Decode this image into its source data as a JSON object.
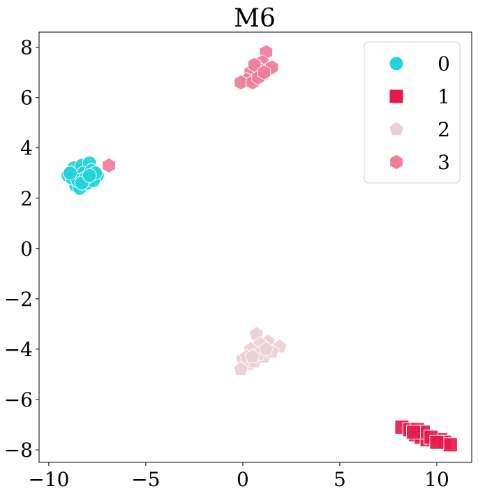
{
  "chart_data": {
    "type": "scatter",
    "title": "M6",
    "xlabel": "",
    "ylabel": "",
    "xlim": [
      -10.5,
      11.8
    ],
    "ylim": [
      -8.5,
      8.6
    ],
    "xticks": [
      -10,
      -5,
      0,
      5,
      10
    ],
    "yticks": [
      -8,
      -6,
      -4,
      -2,
      0,
      2,
      4,
      6,
      8
    ],
    "xtick_labels": [
      "−10",
      "−5",
      "0",
      "5",
      "10"
    ],
    "ytick_labels": [
      "−8",
      "−6",
      "−4",
      "−2",
      "0",
      "2",
      "4",
      "6",
      "8"
    ],
    "grid": false,
    "legend_position": "top-right",
    "series": [
      {
        "name": "0",
        "marker": "circle",
        "color": "#22d3d9",
        "points": [
          [
            -9.0,
            2.9
          ],
          [
            -8.7,
            3.2
          ],
          [
            -8.3,
            3.3
          ],
          [
            -7.9,
            3.4
          ],
          [
            -8.6,
            2.5
          ],
          [
            -8.4,
            2.4
          ],
          [
            -8.0,
            2.6
          ],
          [
            -7.5,
            2.9
          ],
          [
            -7.7,
            2.7
          ],
          [
            -8.8,
            2.8
          ],
          [
            -8.2,
            3.0
          ],
          [
            -7.8,
            3.1
          ],
          [
            -8.5,
            2.7
          ],
          [
            -8.1,
            2.8
          ],
          [
            -7.6,
            3.0
          ],
          [
            -8.9,
            3.0
          ],
          [
            -8.3,
            2.6
          ],
          [
            -7.9,
            2.9
          ]
        ]
      },
      {
        "name": "1",
        "marker": "square",
        "color": "#e8194a",
        "points": [
          [
            8.2,
            -7.1
          ],
          [
            8.6,
            -7.2
          ],
          [
            8.9,
            -7.4
          ],
          [
            9.2,
            -7.5
          ],
          [
            9.0,
            -7.2
          ],
          [
            9.5,
            -7.6
          ],
          [
            9.8,
            -7.6
          ],
          [
            10.2,
            -7.6
          ],
          [
            10.4,
            -7.7
          ],
          [
            10.7,
            -7.8
          ],
          [
            9.3,
            -7.3
          ],
          [
            8.8,
            -7.3
          ],
          [
            9.7,
            -7.5
          ],
          [
            10.0,
            -7.7
          ]
        ]
      },
      {
        "name": "2",
        "marker": "pentagon",
        "color": "#ebcfd4",
        "points": [
          [
            0.7,
            -3.4
          ],
          [
            1.3,
            -3.7
          ],
          [
            1.9,
            -3.9
          ],
          [
            0.9,
            -3.8
          ],
          [
            0.4,
            -4.0
          ],
          [
            0.0,
            -4.4
          ],
          [
            0.3,
            -4.6
          ],
          [
            0.6,
            -4.5
          ],
          [
            1.1,
            -4.3
          ],
          [
            1.5,
            -4.1
          ],
          [
            -0.1,
            -4.8
          ],
          [
            0.2,
            -4.3
          ],
          [
            0.8,
            -4.2
          ],
          [
            1.2,
            -4.0
          ],
          [
            0.5,
            -4.3
          ]
        ]
      },
      {
        "name": "3",
        "marker": "hexagon",
        "color": "#ef7d98",
        "points": [
          [
            1.2,
            7.8
          ],
          [
            1.0,
            7.4
          ],
          [
            0.7,
            7.2
          ],
          [
            0.4,
            7.0
          ],
          [
            0.9,
            7.1
          ],
          [
            1.3,
            7.1
          ],
          [
            1.5,
            7.2
          ],
          [
            0.2,
            6.7
          ],
          [
            -0.1,
            6.6
          ],
          [
            0.5,
            6.6
          ],
          [
            1.0,
            6.9
          ],
          [
            0.8,
            6.8
          ],
          [
            0.6,
            7.3
          ],
          [
            1.1,
            7.0
          ],
          [
            -6.9,
            3.3
          ]
        ]
      }
    ]
  }
}
